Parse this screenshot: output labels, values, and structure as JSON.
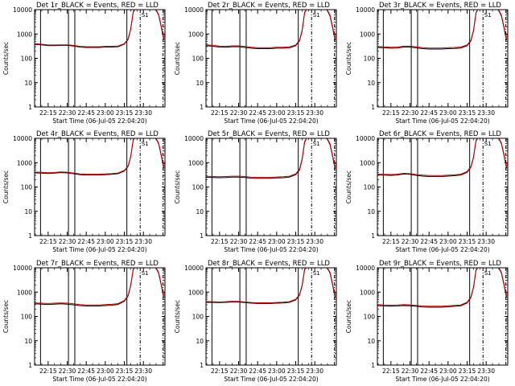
{
  "chart_data": {
    "type": "line",
    "grid_layout": "3x3",
    "x_tick_labels": [
      "22:15",
      "22:30",
      "22:45",
      "23:00",
      "23:15",
      "23:30"
    ],
    "x_tick_minutes": [
      15,
      30,
      45,
      60,
      75,
      90
    ],
    "xlim_minutes": [
      4.33,
      107
    ],
    "xlabel": "Start Time (06-Jul-05 22:04:20)",
    "ylabel": "Counts/sec",
    "y_scale": "log",
    "ylim": [
      1,
      10000
    ],
    "y_tick_labels": [
      "1",
      "10",
      "100",
      "1000",
      "10000"
    ],
    "y_tick_values": [
      1,
      10,
      100,
      1000,
      10000
    ],
    "marker_label": "S1",
    "series_colors": {
      "black": "#000000",
      "red": "#cc0000"
    },
    "panels": [
      {
        "title": "Det 1r_BLACK = Events, RED = LLD",
        "solid_lines": [
          9,
          31,
          36,
          77
        ],
        "dash_lines": [
          87.5,
          105.5
        ],
        "x": [
          4.33,
          10,
          15,
          20,
          25,
          30,
          35,
          40,
          45,
          50,
          55,
          60,
          65,
          70,
          75,
          78,
          80,
          82,
          84,
          86,
          88,
          90,
          92,
          94,
          96,
          98,
          100,
          102,
          104,
          106
        ],
        "black": [
          370,
          360,
          330,
          330,
          340,
          340,
          320,
          290,
          280,
          280,
          280,
          290,
          290,
          300,
          380,
          600,
          1500,
          8000,
          11000,
          11000,
          11000,
          11000,
          11000,
          11000,
          11000,
          11000,
          9500,
          6000,
          2000,
          600
        ],
        "red": [
          400,
          380,
          355,
          355,
          360,
          360,
          340,
          310,
          300,
          300,
          300,
          310,
          310,
          320,
          400,
          640,
          1600,
          8500,
          11000,
          11000,
          11000,
          11000,
          11000,
          11000,
          11000,
          11000,
          10000,
          6500,
          2200,
          650
        ]
      },
      {
        "title": "Det 2r_BLACK = Events, RED = LLD",
        "solid_lines": [
          9,
          31,
          36,
          77
        ],
        "dash_lines": [
          87.5,
          105.5
        ],
        "x": [
          4.33,
          10,
          15,
          20,
          25,
          30,
          35,
          40,
          45,
          50,
          55,
          60,
          65,
          70,
          75,
          78,
          80,
          82,
          84,
          86,
          88,
          90,
          92,
          94,
          96,
          98,
          100,
          102,
          104,
          106
        ],
        "black": [
          330,
          310,
          290,
          285,
          300,
          300,
          280,
          260,
          250,
          250,
          250,
          260,
          260,
          270,
          330,
          520,
          1300,
          7500,
          11000,
          11000,
          11000,
          11000,
          11000,
          11000,
          11000,
          11000,
          9000,
          5500,
          1800,
          550
        ],
        "red": [
          360,
          340,
          315,
          310,
          325,
          325,
          305,
          285,
          275,
          275,
          275,
          285,
          285,
          295,
          355,
          560,
          1400,
          8000,
          11000,
          11000,
          11000,
          11000,
          11000,
          11000,
          11000,
          11000,
          9500,
          6000,
          2000,
          600
        ]
      },
      {
        "title": "Det 3r_BLACK = Events, RED = LLD",
        "solid_lines": [
          9,
          31,
          36,
          77
        ],
        "dash_lines": [
          87.5,
          105.5
        ],
        "x": [
          4.33,
          10,
          15,
          20,
          25,
          30,
          35,
          40,
          45,
          50,
          55,
          60,
          65,
          70,
          75,
          78,
          80,
          82,
          84,
          86,
          88,
          90,
          92,
          94,
          96,
          98,
          100,
          102,
          104,
          106
        ],
        "black": [
          280,
          270,
          260,
          265,
          290,
          290,
          270,
          250,
          240,
          240,
          240,
          250,
          255,
          265,
          330,
          520,
          1300,
          7500,
          11000,
          11000,
          11000,
          11000,
          11000,
          11000,
          11000,
          11000,
          9000,
          5500,
          1800,
          550
        ],
        "red": [
          305,
          295,
          285,
          290,
          315,
          315,
          295,
          275,
          265,
          265,
          265,
          275,
          280,
          290,
          355,
          560,
          1400,
          8000,
          11000,
          11000,
          11000,
          11000,
          11000,
          11000,
          11000,
          11000,
          9500,
          6000,
          2000,
          600
        ]
      },
      {
        "title": "Det 4r_BLACK = Events, RED = LLD",
        "solid_lines": [
          9,
          31,
          36,
          77
        ],
        "dash_lines": [
          87.5,
          105.5
        ],
        "x": [
          4.33,
          10,
          15,
          20,
          25,
          30,
          35,
          40,
          45,
          50,
          55,
          60,
          65,
          70,
          75,
          78,
          80,
          82,
          84,
          86,
          88,
          90,
          92,
          94,
          96,
          98,
          100,
          102,
          104,
          106
        ],
        "black": [
          380,
          370,
          360,
          370,
          390,
          380,
          350,
          320,
          310,
          310,
          310,
          320,
          330,
          350,
          450,
          700,
          1700,
          8500,
          11000,
          11000,
          11000,
          11000,
          11000,
          11000,
          11000,
          11000,
          9500,
          6000,
          2000,
          600
        ],
        "red": [
          410,
          400,
          385,
          395,
          415,
          405,
          375,
          345,
          335,
          335,
          335,
          345,
          355,
          375,
          480,
          740,
          1800,
          9000,
          11000,
          11000,
          11000,
          11000,
          11000,
          11000,
          11000,
          11000,
          10000,
          6500,
          2200,
          650
        ]
      },
      {
        "title": "Det 5r_BLACK = Events, RED = LLD",
        "solid_lines": [
          9,
          31,
          36,
          77
        ],
        "dash_lines": [
          87.5,
          105.5
        ],
        "x": [
          4.33,
          10,
          15,
          20,
          25,
          30,
          35,
          40,
          45,
          50,
          55,
          60,
          65,
          70,
          75,
          78,
          80,
          82,
          84,
          86,
          88,
          90,
          92,
          94,
          96,
          98,
          100,
          102,
          104,
          106
        ],
        "black": [
          250,
          245,
          240,
          245,
          255,
          255,
          245,
          230,
          225,
          225,
          225,
          235,
          240,
          255,
          320,
          500,
          1300,
          7000,
          11000,
          11000,
          11000,
          11000,
          11000,
          11000,
          11000,
          11000,
          9000,
          5500,
          1800,
          550
        ],
        "red": [
          275,
          270,
          262,
          268,
          278,
          278,
          268,
          252,
          247,
          247,
          247,
          257,
          262,
          278,
          345,
          540,
          1400,
          7500,
          11000,
          11000,
          11000,
          11000,
          11000,
          11000,
          11000,
          11000,
          9500,
          6000,
          2000,
          600
        ]
      },
      {
        "title": "Det 6r_BLACK = Events, RED = LLD",
        "solid_lines": [
          9,
          31,
          36,
          77
        ],
        "dash_lines": [
          87.5,
          105.5
        ],
        "x": [
          4.33,
          10,
          15,
          20,
          25,
          30,
          35,
          40,
          45,
          50,
          55,
          60,
          65,
          70,
          75,
          78,
          80,
          82,
          84,
          86,
          88,
          90,
          92,
          94,
          96,
          98,
          100,
          102,
          104,
          106
        ],
        "black": [
          310,
          305,
          300,
          310,
          340,
          330,
          300,
          280,
          270,
          270,
          270,
          280,
          290,
          310,
          400,
          650,
          1600,
          8000,
          11000,
          11000,
          11000,
          11000,
          11000,
          11000,
          11000,
          11000,
          9500,
          6000,
          2000,
          600
        ],
        "red": [
          335,
          330,
          325,
          335,
          365,
          355,
          325,
          305,
          295,
          295,
          295,
          305,
          315,
          335,
          430,
          690,
          1700,
          8500,
          11000,
          11000,
          11000,
          11000,
          11000,
          11000,
          11000,
          11000,
          10000,
          6500,
          2200,
          650
        ]
      },
      {
        "title": "Det 7r_BLACK = Events, RED = LLD",
        "solid_lines": [
          9,
          31,
          36,
          77
        ],
        "dash_lines": [
          87.5,
          105.5
        ],
        "x": [
          4.33,
          10,
          15,
          20,
          25,
          30,
          35,
          40,
          45,
          50,
          55,
          60,
          65,
          70,
          75,
          78,
          80,
          82,
          84,
          86,
          88,
          90,
          92,
          94,
          96,
          98,
          100,
          102,
          104,
          106
        ],
        "black": [
          330,
          320,
          310,
          320,
          330,
          320,
          300,
          280,
          270,
          270,
          270,
          280,
          290,
          310,
          420,
          700,
          1800,
          8500,
          11000,
          11000,
          11000,
          11000,
          11000,
          11000,
          11000,
          11000,
          9500,
          6000,
          2000,
          600
        ],
        "red": [
          360,
          350,
          340,
          350,
          360,
          350,
          330,
          305,
          295,
          295,
          295,
          305,
          315,
          335,
          450,
          740,
          1900,
          9000,
          11000,
          11000,
          11000,
          11000,
          11000,
          11000,
          11000,
          11000,
          10000,
          6500,
          2200,
          650
        ]
      },
      {
        "title": "Det 8r_BLACK = Events, RED = LLD",
        "solid_lines": [
          9,
          31,
          36,
          77
        ],
        "dash_lines": [
          87.5,
          105.5
        ],
        "x": [
          4.33,
          10,
          15,
          20,
          25,
          30,
          35,
          40,
          45,
          50,
          55,
          60,
          65,
          70,
          75,
          78,
          80,
          82,
          84,
          86,
          88,
          90,
          92,
          94,
          96,
          98,
          100,
          102,
          104,
          106
        ],
        "black": [
          380,
          375,
          370,
          380,
          395,
          390,
          370,
          350,
          340,
          340,
          340,
          350,
          360,
          380,
          480,
          750,
          1800,
          8500,
          11000,
          11000,
          11000,
          11000,
          11000,
          11000,
          11000,
          11000,
          9500,
          6000,
          2000,
          600
        ],
        "red": [
          410,
          405,
          395,
          405,
          420,
          415,
          395,
          375,
          365,
          365,
          365,
          375,
          385,
          405,
          510,
          790,
          1900,
          9000,
          11000,
          11000,
          11000,
          11000,
          11000,
          11000,
          11000,
          11000,
          10000,
          6500,
          2200,
          650
        ]
      },
      {
        "title": "Det 9r_BLACK = Events, RED = LLD",
        "solid_lines": [
          9,
          31,
          36,
          77
        ],
        "dash_lines": [
          87.5,
          105.5
        ],
        "x": [
          4.33,
          10,
          15,
          20,
          25,
          30,
          35,
          40,
          45,
          50,
          55,
          60,
          65,
          70,
          75,
          78,
          80,
          82,
          84,
          86,
          88,
          90,
          92,
          94,
          96,
          98,
          100,
          102,
          104,
          106
        ],
        "black": [
          280,
          270,
          265,
          270,
          280,
          275,
          260,
          245,
          240,
          240,
          240,
          250,
          260,
          275,
          360,
          600,
          1500,
          8000,
          11000,
          11000,
          11000,
          11000,
          11000,
          11000,
          11000,
          11000,
          9500,
          6000,
          2000,
          600
        ],
        "red": [
          305,
          295,
          290,
          295,
          305,
          300,
          285,
          268,
          263,
          263,
          263,
          273,
          283,
          298,
          385,
          640,
          1600,
          8500,
          11000,
          11000,
          11000,
          11000,
          11000,
          11000,
          11000,
          11000,
          10000,
          6500,
          2200,
          650
        ]
      }
    ]
  }
}
